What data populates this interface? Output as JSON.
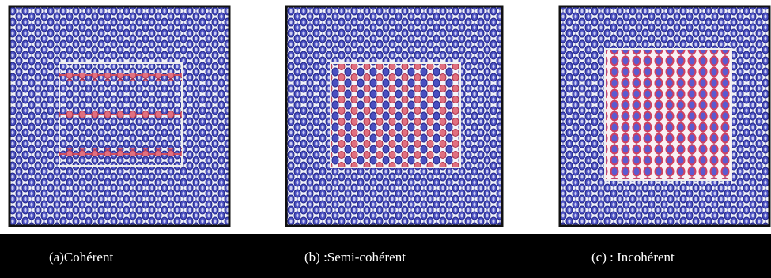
{
  "panels": [
    {
      "caption": "(a)Cohérent"
    },
    {
      "caption": "(b) :Semi-cohérent"
    },
    {
      "caption": "(c) : Incohérent"
    }
  ]
}
